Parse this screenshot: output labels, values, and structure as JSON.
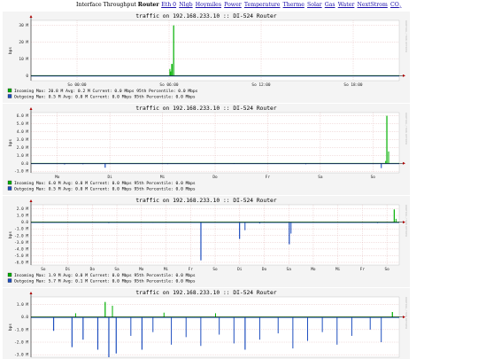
{
  "nav": {
    "title": "Interface Throughput",
    "current": "Router",
    "links": [
      "Eth 0",
      "Nlgb",
      "Hoymiles",
      "Power",
      "Temperature",
      "Therme",
      "Solar",
      "Gas",
      "Water",
      "NextStrom"
    ],
    "co2_main": "CO",
    "co2_sub": "2"
  },
  "colors": {
    "in": "#00b000",
    "out": "#1f4fbf",
    "avg": "#0000cc",
    "bg": "#f4f4f4",
    "grid": "#e0b0b0"
  },
  "graphs": [
    {
      "title": "traffic on 192.168.233.10 :: DI-524 Router",
      "ylabel": "bps",
      "side": "RRDTOOL / TOBI OETIKER",
      "yticks": [
        "30 M",
        "20 M",
        "10 M",
        "0"
      ],
      "yvals": [
        30,
        20,
        10,
        0
      ],
      "ymin": -3,
      "ymax": 33,
      "xticks": [
        "So 00:00",
        "So 06:00",
        "So 12:00",
        "So 18:00"
      ],
      "legend": [
        {
          "name": "Incoming",
          "max": "20.8 M",
          "avg": "0.2 M",
          "cur": "0.0 Mbps",
          "p95": "0.0 Mbps"
        },
        {
          "name": "Outgoing",
          "max": "0.5 M",
          "avg": "0.0 M",
          "cur": "0.0 Mbps",
          "p95": "0.0 Mbps"
        }
      ]
    },
    {
      "title": "traffic on 192.168.233.10 :: DI-524 Router",
      "ylabel": "bps",
      "side": "RRDTOOL / TOBI OETIKER",
      "yticks": [
        "6.0 M",
        "5.0 M",
        "4.0 M",
        "3.0 M",
        "2.0 M",
        "1.0 M",
        "0.0",
        "-1.0 M"
      ],
      "yvals": [
        6,
        5,
        4,
        3,
        2,
        1,
        0,
        -1
      ],
      "ymin": -1.2,
      "ymax": 6.4,
      "xticks": [
        "Mo",
        "Di",
        "Mi",
        "Do",
        "Fr",
        "Sa",
        "So"
      ],
      "legend": [
        {
          "name": "Incoming",
          "max": "6.0 M",
          "avg": "0.0 M",
          "cur": "0.0 Mbps",
          "p95": "0.0 Mbps"
        },
        {
          "name": "Outgoing",
          "max": "0.5 M",
          "avg": "0.0 M",
          "cur": "0.0 Mbps",
          "p95": "0.0 Mbps"
        }
      ]
    },
    {
      "title": "traffic on 192.168.233.10 :: DI-524 Router",
      "ylabel": "bps",
      "side": "RRDTOOL / TOBI OETIKER",
      "yticks": [
        "2.0 M",
        "1.0 M",
        "0.0",
        "-1.0 M",
        "-2.0 M",
        "-3.0 M",
        "-4.0 M",
        "-5.0 M",
        "-6.0 M"
      ],
      "yvals": [
        2,
        1,
        0,
        -1,
        -2,
        -3,
        -4,
        -5,
        -6
      ],
      "ymin": -6.4,
      "ymax": 2.6,
      "xticks": [
        "So",
        "Di",
        "Do",
        "Sa",
        "Mo",
        "Mi",
        "Fr",
        "So",
        "Di",
        "Do",
        "Sa",
        "Mo",
        "Mi",
        "Fr",
        "So"
      ],
      "legend": [
        {
          "name": "Incoming",
          "max": "1.9 M",
          "avg": "0.0 M",
          "cur": "0.0 Mbps",
          "p95": "0.0 Mbps"
        },
        {
          "name": "Outgoing",
          "max": "5.7 M",
          "avg": "0.1 M",
          "cur": "0.0 Mbps",
          "p95": "0.0 Mbps"
        }
      ]
    },
    {
      "title": "traffic on 192.168.233.10 :: DI-524 Router",
      "ylabel": "bps",
      "side": "RRDTOOL / TOBI OETIKER",
      "yticks": [
        "1.0 M",
        "0.0",
        "-1.0 M",
        "-2.0 M",
        "-3.0 M"
      ],
      "yvals": [
        1,
        0,
        -1,
        -2,
        -3
      ],
      "ymin": -3.2,
      "ymax": 1.6,
      "xticks": [],
      "legend": []
    }
  ]
}
